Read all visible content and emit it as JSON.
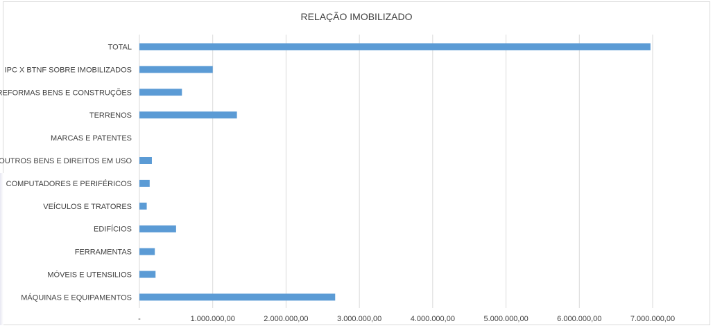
{
  "chart_data": {
    "type": "bar",
    "orientation": "horizontal",
    "title": "RELAÇÃO IMOBILIZADO",
    "categories": [
      "TOTAL",
      "IPC X BTNF SOBRE IMOBILIZADOS",
      "REFORMAS BENS E CONSTRUÇÕES",
      "TERRENOS",
      "MARCAS E PATENTES",
      "OUTROS BENS E DIREITOS EM USO",
      "COMPUTADORES E PERIFÉRICOS",
      "VEÍCULOS E TRATORES",
      "EDIFÍCIOS",
      "FERRAMENTAS",
      "MÓVEIS E UTENSILIOS",
      "MÁQUINAS E EQUIPAMENTOS"
    ],
    "values": [
      6970000,
      1000000,
      580000,
      1330000,
      0,
      170000,
      140000,
      100000,
      500000,
      210000,
      220000,
      2670000
    ],
    "xlim": [
      0,
      7000000
    ],
    "x_ticks": [
      0,
      1000000,
      2000000,
      3000000,
      4000000,
      5000000,
      6000000,
      7000000
    ],
    "x_tick_labels": [
      "-",
      "1.000.000,00",
      "2.000.000,00",
      "3.000.000,00",
      "4.000.000,00",
      "5.000.000,00",
      "6.000.000,00",
      "7.000.000,00"
    ],
    "grid": "vertical",
    "legend": "none",
    "bar_color": "#5b9bd5",
    "grid_color": "#d9d9d9"
  }
}
